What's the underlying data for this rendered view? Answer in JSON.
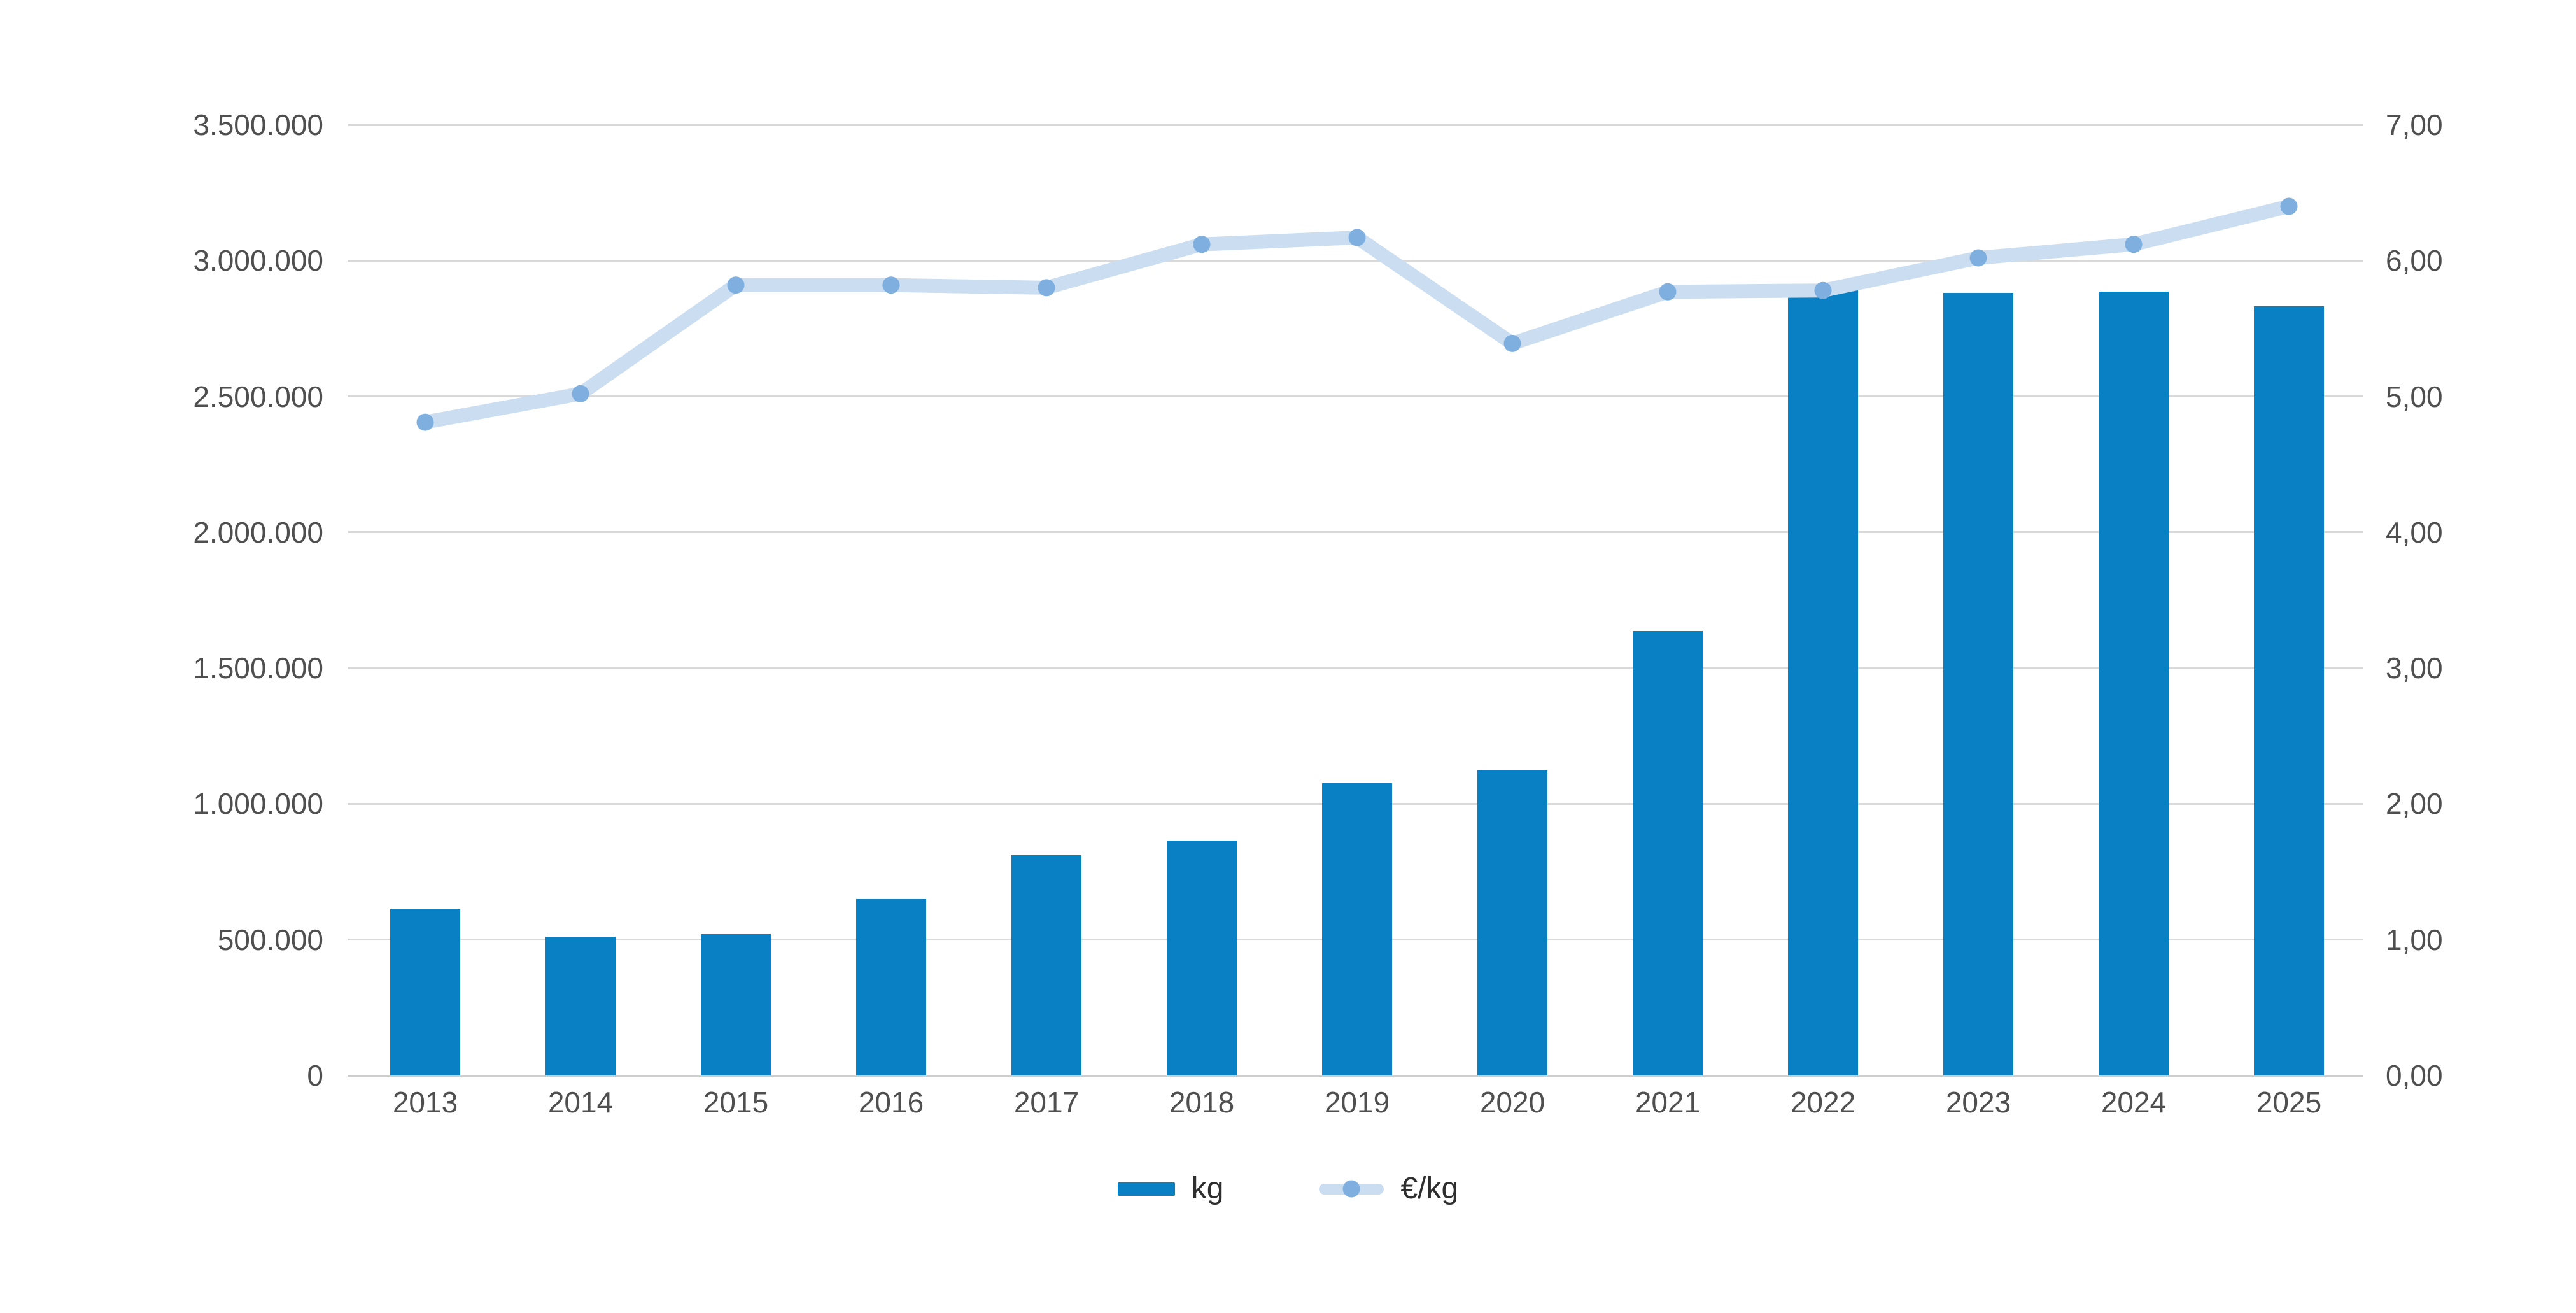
{
  "chart": {
    "legend": {
      "items": [
        {
          "label": "kg",
          "marker": "bar-swatch-icon"
        },
        {
          "label": "€/kg",
          "marker": "line-dot-swatch-icon"
        }
      ]
    },
    "colors": {
      "bar": "#0a80c4",
      "line": "#cbddf1",
      "dot": "#7fafdf",
      "grid": "#d9d9d9",
      "axisline": "#cdcdcd",
      "axistext": "#4f4f4f",
      "legendtext": "#2e2e2e",
      "background": "#ffffff"
    }
  },
  "chart_data": {
    "type": "bar",
    "title": "",
    "categories": [
      "2013",
      "2014",
      "2015",
      "2016",
      "2017",
      "2018",
      "2019",
      "2020",
      "2021",
      "2022",
      "2023",
      "2024",
      "2025"
    ],
    "series": [
      {
        "name": "kg",
        "type": "bar",
        "axis": "left",
        "values": [
          612000,
          510000,
          520000,
          650000,
          810000,
          865000,
          1076000,
          1124000,
          1636000,
          2915000,
          2880000,
          2885000,
          2831000
        ]
      },
      {
        "name": "€/kg",
        "type": "line",
        "axis": "right",
        "values": [
          4.81,
          5.02,
          5.82,
          5.82,
          5.8,
          6.12,
          6.17,
          5.39,
          5.77,
          5.78,
          6.02,
          6.12,
          6.4
        ]
      }
    ],
    "left_axis": {
      "min": 0,
      "max": 3500000,
      "step": 500000,
      "tick_labels": [
        "0",
        "500.000",
        "1.000.000",
        "1.500.000",
        "2.000.000",
        "2.500.000",
        "3.000.000",
        "3.500.000"
      ]
    },
    "right_axis": {
      "min": 0,
      "max": 7,
      "step": 1,
      "tick_labels": [
        "0,00",
        "1,00",
        "2,00",
        "3,00",
        "4,00",
        "5,00",
        "6,00",
        "7,00"
      ]
    },
    "grid": true,
    "legend_position": "bottom"
  }
}
